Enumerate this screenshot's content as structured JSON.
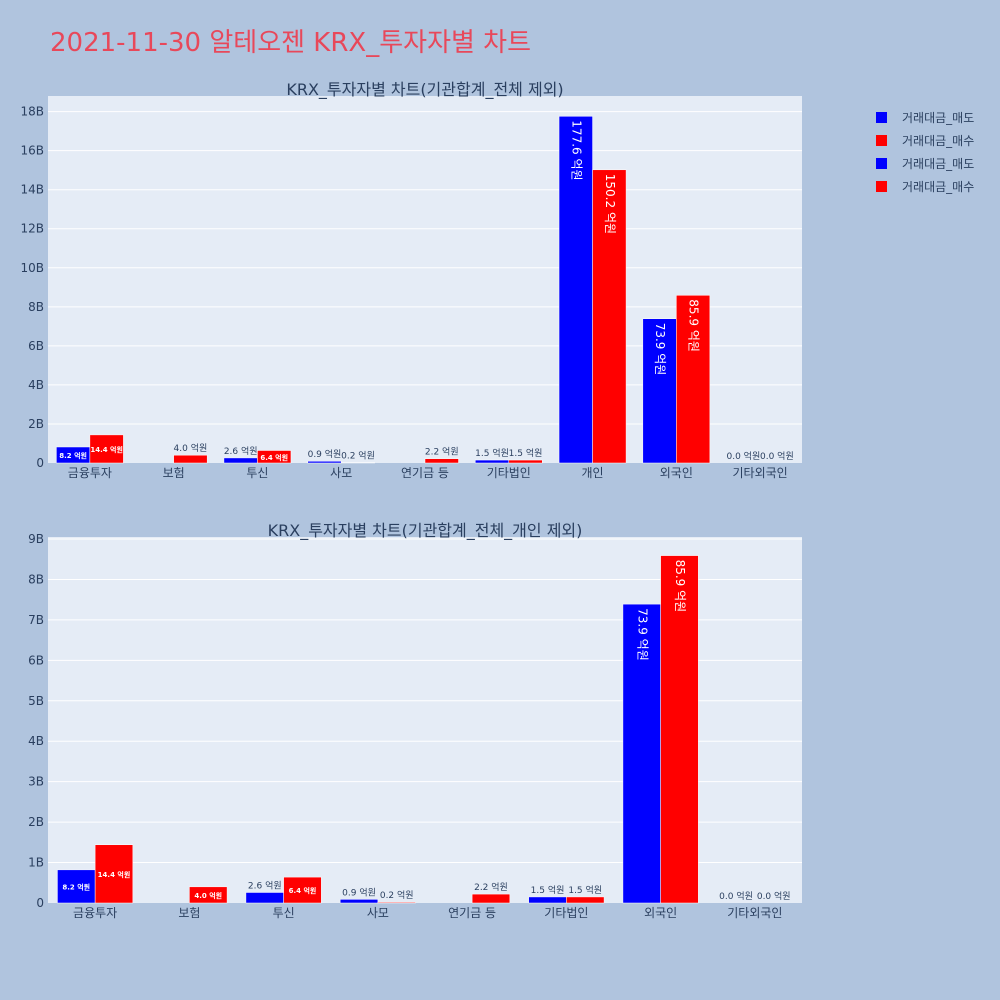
{
  "page_title": "2021-11-30 알테오젠 KRX_투자자별 차트",
  "legend": [
    {
      "label": "거래대금_매도",
      "color": "#0000ff"
    },
    {
      "label": "거래대금_매수",
      "color": "#ff0000"
    },
    {
      "label": "거래대금_매도",
      "color": "#0000ff"
    },
    {
      "label": "거래대금_매수",
      "color": "#ff0000"
    }
  ],
  "chart_data": [
    {
      "type": "bar",
      "title": "KRX_투자자별 차트(기관합계_전체 제외)",
      "categories": [
        "금융투자",
        "보험",
        "투신",
        "사모",
        "연기금 등",
        "기타법인",
        "개인",
        "외국인",
        "기타외국인"
      ],
      "series": [
        {
          "name": "거래대금_매도",
          "color": "#0000ff",
          "values": [
            820000000,
            0,
            260000000,
            90000000,
            0,
            150000000,
            17760000000,
            7390000000,
            0
          ],
          "labels": [
            "8.2 억원",
            "",
            "2.6 억원",
            "0.9 억원",
            "",
            "1.5 억원",
            "177.6 억원",
            "73.9 억원",
            "0.0 억원"
          ]
        },
        {
          "name": "거래대금_매수",
          "color": "#ff0000",
          "values": [
            1440000000,
            400000000,
            640000000,
            20000000,
            220000000,
            150000000,
            15020000000,
            8590000000,
            0
          ],
          "labels": [
            "14.4 억원",
            "4.0 억원",
            "6.4 억원",
            "0.2 억원",
            "2.2 억원",
            "1.5 억원",
            "150.2 억원",
            "85.9 억원",
            "0.0 억원"
          ]
        }
      ],
      "ylim": [
        0,
        18800000000
      ],
      "yticks": [
        0,
        2000000000,
        4000000000,
        6000000000,
        8000000000,
        10000000000,
        12000000000,
        14000000000,
        16000000000,
        18000000000
      ],
      "ytick_labels": [
        "0",
        "2B",
        "4B",
        "6B",
        "8B",
        "10B",
        "12B",
        "14B",
        "16B",
        "18B"
      ],
      "grid": true
    },
    {
      "type": "bar",
      "title": "KRX_투자자별 차트(기관합계_전체_개인 제외)",
      "categories": [
        "금융투자",
        "보험",
        "투신",
        "사모",
        "연기금 등",
        "기타법인",
        "외국인",
        "기타외국인"
      ],
      "series": [
        {
          "name": "거래대금_매도",
          "color": "#0000ff",
          "values": [
            820000000,
            0,
            260000000,
            90000000,
            0,
            150000000,
            7390000000,
            0
          ],
          "labels": [
            "8.2 억원",
            "",
            "2.6 억원",
            "0.9 억원",
            "",
            "1.5 억원",
            "73.9 억원",
            "0.0 억원"
          ]
        },
        {
          "name": "거래대금_매수",
          "color": "#ff0000",
          "values": [
            1440000000,
            400000000,
            640000000,
            20000000,
            220000000,
            150000000,
            8590000000,
            0
          ],
          "labels": [
            "14.4 억원",
            "4.0 억원",
            "6.4 억원",
            "0.2 억원",
            "2.2 억원",
            "1.5 억원",
            "85.9 억원",
            "0.0 억원"
          ]
        }
      ],
      "ylim": [
        0,
        9050000000
      ],
      "yticks": [
        0,
        1000000000,
        2000000000,
        3000000000,
        4000000000,
        5000000000,
        6000000000,
        7000000000,
        8000000000,
        9000000000
      ],
      "ytick_labels": [
        "0",
        "1B",
        "2B",
        "3B",
        "4B",
        "5B",
        "6B",
        "7B",
        "8B",
        "9B"
      ],
      "grid": true
    }
  ]
}
